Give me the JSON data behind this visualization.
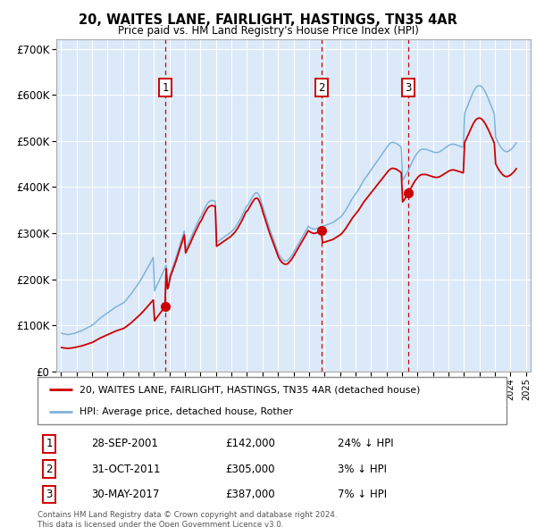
{
  "title": "20, WAITES LANE, FAIRLIGHT, HASTINGS, TN35 4AR",
  "subtitle": "Price paid vs. HM Land Registry's House Price Index (HPI)",
  "xlim_start": 1994.7,
  "xlim_end": 2025.3,
  "ylim": [
    0,
    720000
  ],
  "yticks": [
    0,
    100000,
    200000,
    300000,
    400000,
    500000,
    600000,
    700000
  ],
  "ytick_labels": [
    "£0",
    "£100K",
    "£200K",
    "£300K",
    "£400K",
    "£500K",
    "£600K",
    "£700K"
  ],
  "bg_color": "#dce9f8",
  "grid_color": "#ffffff",
  "sale_color": "#cc0000",
  "hpi_color": "#7fb3d9",
  "sale_points": [
    {
      "date": 2001.74,
      "price": 142000,
      "label": "1"
    },
    {
      "date": 2011.83,
      "price": 305000,
      "label": "2"
    },
    {
      "date": 2017.41,
      "price": 387000,
      "label": "3"
    }
  ],
  "vline_color": "#cc0000",
  "table_rows": [
    {
      "num": "1",
      "date": "28-SEP-2001",
      "price": "£142,000",
      "hpi": "24% ↓ HPI"
    },
    {
      "num": "2",
      "date": "31-OCT-2011",
      "price": "£305,000",
      "hpi": "3% ↓ HPI"
    },
    {
      "num": "3",
      "date": "30-MAY-2017",
      "price": "£387,000",
      "hpi": "7% ↓ HPI"
    }
  ],
  "legend_entry1": "20, WAITES LANE, FAIRLIGHT, HASTINGS, TN35 4AR (detached house)",
  "legend_entry2": "HPI: Average price, detached house, Rother",
  "footnote": "Contains HM Land Registry data © Crown copyright and database right 2024.\nThis data is licensed under the Open Government Licence v3.0.",
  "hpi_monthly": {
    "dates": [
      1995.042,
      1995.125,
      1995.208,
      1995.292,
      1995.375,
      1995.458,
      1995.542,
      1995.625,
      1995.708,
      1995.792,
      1995.875,
      1995.958,
      1996.042,
      1996.125,
      1996.208,
      1996.292,
      1996.375,
      1996.458,
      1996.542,
      1996.625,
      1996.708,
      1996.792,
      1996.875,
      1996.958,
      1997.042,
      1997.125,
      1997.208,
      1997.292,
      1997.375,
      1997.458,
      1997.542,
      1997.625,
      1997.708,
      1997.792,
      1997.875,
      1997.958,
      1998.042,
      1998.125,
      1998.208,
      1998.292,
      1998.375,
      1998.458,
      1998.542,
      1998.625,
      1998.708,
      1998.792,
      1998.875,
      1998.958,
      1999.042,
      1999.125,
      1999.208,
      1999.292,
      1999.375,
      1999.458,
      1999.542,
      1999.625,
      1999.708,
      1999.792,
      1999.875,
      1999.958,
      2000.042,
      2000.125,
      2000.208,
      2000.292,
      2000.375,
      2000.458,
      2000.542,
      2000.625,
      2000.708,
      2000.792,
      2000.875,
      2000.958,
      2001.042,
      2001.125,
      2001.208,
      2001.292,
      2001.375,
      2001.458,
      2001.542,
      2001.625,
      2001.708,
      2001.792,
      2001.875,
      2001.958,
      2002.042,
      2002.125,
      2002.208,
      2002.292,
      2002.375,
      2002.458,
      2002.542,
      2002.625,
      2002.708,
      2002.792,
      2002.875,
      2002.958,
      2003.042,
      2003.125,
      2003.208,
      2003.292,
      2003.375,
      2003.458,
      2003.542,
      2003.625,
      2003.708,
      2003.792,
      2003.875,
      2003.958,
      2004.042,
      2004.125,
      2004.208,
      2004.292,
      2004.375,
      2004.458,
      2004.542,
      2004.625,
      2004.708,
      2004.792,
      2004.875,
      2004.958,
      2005.042,
      2005.125,
      2005.208,
      2005.292,
      2005.375,
      2005.458,
      2005.542,
      2005.625,
      2005.708,
      2005.792,
      2005.875,
      2005.958,
      2006.042,
      2006.125,
      2006.208,
      2006.292,
      2006.375,
      2006.458,
      2006.542,
      2006.625,
      2006.708,
      2006.792,
      2006.875,
      2006.958,
      2007.042,
      2007.125,
      2007.208,
      2007.292,
      2007.375,
      2007.458,
      2007.542,
      2007.625,
      2007.708,
      2007.792,
      2007.875,
      2007.958,
      2008.042,
      2008.125,
      2008.208,
      2008.292,
      2008.375,
      2008.458,
      2008.542,
      2008.625,
      2008.708,
      2008.792,
      2008.875,
      2008.958,
      2009.042,
      2009.125,
      2009.208,
      2009.292,
      2009.375,
      2009.458,
      2009.542,
      2009.625,
      2009.708,
      2009.792,
      2009.875,
      2009.958,
      2010.042,
      2010.125,
      2010.208,
      2010.292,
      2010.375,
      2010.458,
      2010.542,
      2010.625,
      2010.708,
      2010.792,
      2010.875,
      2010.958,
      2011.042,
      2011.125,
      2011.208,
      2011.292,
      2011.375,
      2011.458,
      2011.542,
      2011.625,
      2011.708,
      2011.792,
      2011.875,
      2011.958,
      2012.042,
      2012.125,
      2012.208,
      2012.292,
      2012.375,
      2012.458,
      2012.542,
      2012.625,
      2012.708,
      2012.792,
      2012.875,
      2012.958,
      2013.042,
      2013.125,
      2013.208,
      2013.292,
      2013.375,
      2013.458,
      2013.542,
      2013.625,
      2013.708,
      2013.792,
      2013.875,
      2013.958,
      2014.042,
      2014.125,
      2014.208,
      2014.292,
      2014.375,
      2014.458,
      2014.542,
      2014.625,
      2014.708,
      2014.792,
      2014.875,
      2014.958,
      2015.042,
      2015.125,
      2015.208,
      2015.292,
      2015.375,
      2015.458,
      2015.542,
      2015.625,
      2015.708,
      2015.792,
      2015.875,
      2015.958,
      2016.042,
      2016.125,
      2016.208,
      2016.292,
      2016.375,
      2016.458,
      2016.542,
      2016.625,
      2016.708,
      2016.792,
      2016.875,
      2016.958,
      2017.042,
      2017.125,
      2017.208,
      2017.292,
      2017.375,
      2017.458,
      2017.542,
      2017.625,
      2017.708,
      2017.792,
      2017.875,
      2017.958,
      2018.042,
      2018.125,
      2018.208,
      2018.292,
      2018.375,
      2018.458,
      2018.542,
      2018.625,
      2018.708,
      2018.792,
      2018.875,
      2018.958,
      2019.042,
      2019.125,
      2019.208,
      2019.292,
      2019.375,
      2019.458,
      2019.542,
      2019.625,
      2019.708,
      2019.792,
      2019.875,
      2019.958,
      2020.042,
      2020.125,
      2020.208,
      2020.292,
      2020.375,
      2020.458,
      2020.542,
      2020.625,
      2020.708,
      2020.792,
      2020.875,
      2020.958,
      2021.042,
      2021.125,
      2021.208,
      2021.292,
      2021.375,
      2021.458,
      2021.542,
      2021.625,
      2021.708,
      2021.792,
      2021.875,
      2021.958,
      2022.042,
      2022.125,
      2022.208,
      2022.292,
      2022.375,
      2022.458,
      2022.542,
      2022.625,
      2022.708,
      2022.792,
      2022.875,
      2022.958,
      2023.042,
      2023.125,
      2023.208,
      2023.292,
      2023.375,
      2023.458,
      2023.542,
      2023.625,
      2023.708,
      2023.792,
      2023.875,
      2023.958,
      2024.042,
      2024.125,
      2024.208,
      2024.292,
      2024.375
    ],
    "values": [
      83000,
      82000,
      81500,
      81000,
      80500,
      80000,
      80500,
      81000,
      81500,
      82000,
      83000,
      84000,
      85000,
      86000,
      87000,
      88000,
      89000,
      90500,
      92000,
      93500,
      95000,
      96500,
      98000,
      99500,
      101000,
      103500,
      106000,
      108500,
      111000,
      113500,
      116000,
      118000,
      120000,
      122000,
      124000,
      126000,
      128000,
      130000,
      132000,
      134000,
      136000,
      138000,
      140000,
      141500,
      143000,
      144500,
      146000,
      147500,
      149000,
      152000,
      155000,
      158500,
      162000,
      165500,
      169000,
      173000,
      177000,
      181000,
      185000,
      189000,
      193000,
      197500,
      202000,
      207000,
      212000,
      217000,
      222000,
      227000,
      232000,
      237000,
      242000,
      247500,
      175000,
      182000,
      188000,
      194000,
      200000,
      206000,
      212000,
      218000,
      224000,
      230000,
      185000,
      192000,
      210000,
      218000,
      226000,
      234000,
      242000,
      251000,
      260000,
      269000,
      278000,
      287000,
      296000,
      305000,
      265000,
      271000,
      277000,
      283000,
      289000,
      296000,
      303000,
      309000,
      315000,
      321000,
      327000,
      333000,
      337000,
      343000,
      349000,
      355000,
      360000,
      365000,
      368000,
      370000,
      371000,
      371000,
      370000,
      369000,
      280000,
      282000,
      284000,
      286000,
      288000,
      290000,
      292000,
      294000,
      296000,
      298000,
      300000,
      302000,
      305000,
      308000,
      311000,
      315000,
      319000,
      324000,
      329000,
      334000,
      340000,
      346000,
      352000,
      358000,
      360000,
      365000,
      370000,
      375000,
      380000,
      384000,
      387000,
      388000,
      386000,
      381000,
      374000,
      365000,
      355000,
      346000,
      337000,
      328000,
      319000,
      310000,
      302000,
      294000,
      286000,
      278000,
      270000,
      262000,
      255000,
      250000,
      246000,
      243000,
      241000,
      240000,
      240000,
      241000,
      244000,
      247000,
      251000,
      255000,
      260000,
      265000,
      270000,
      275000,
      280000,
      285000,
      290000,
      295000,
      300000,
      305000,
      310000,
      315000,
      313000,
      311000,
      310000,
      309000,
      309000,
      310000,
      311000,
      312000,
      313000,
      314000,
      315000,
      316000,
      317000,
      318000,
      319000,
      320000,
      321000,
      322000,
      323000,
      325000,
      327000,
      329000,
      331000,
      333000,
      335000,
      338000,
      342000,
      346000,
      350000,
      355000,
      360000,
      365000,
      370000,
      375000,
      379000,
      383000,
      387000,
      391000,
      395000,
      400000,
      405000,
      410000,
      415000,
      419000,
      423000,
      427000,
      431000,
      435000,
      439000,
      443000,
      447000,
      451000,
      455000,
      459000,
      463000,
      467000,
      471000,
      475000,
      479000,
      483000,
      487000,
      491000,
      494000,
      496000,
      497000,
      497000,
      496000,
      495000,
      493000,
      491000,
      489000,
      486000,
      415000,
      419000,
      424000,
      429000,
      434000,
      440000,
      446000,
      452000,
      458000,
      463000,
      468000,
      472000,
      476000,
      479000,
      481000,
      482000,
      482000,
      482000,
      482000,
      481000,
      480000,
      479000,
      478000,
      477000,
      476000,
      475000,
      475000,
      475000,
      476000,
      477000,
      479000,
      481000,
      483000,
      485000,
      487000,
      489000,
      491000,
      492000,
      493000,
      493000,
      493000,
      492000,
      491000,
      490000,
      489000,
      488000,
      487000,
      486000,
      560000,
      567000,
      574000,
      581000,
      588000,
      595000,
      602000,
      608000,
      613000,
      617000,
      619000,
      620000,
      620000,
      618000,
      615000,
      611000,
      606000,
      600000,
      594000,
      587000,
      580000,
      573000,
      566000,
      558000,
      508000,
      502000,
      496000,
      491000,
      487000,
      483000,
      480000,
      478000,
      477000,
      477000,
      478000,
      480000,
      482000,
      485000,
      488000,
      492000,
      496000
    ]
  }
}
